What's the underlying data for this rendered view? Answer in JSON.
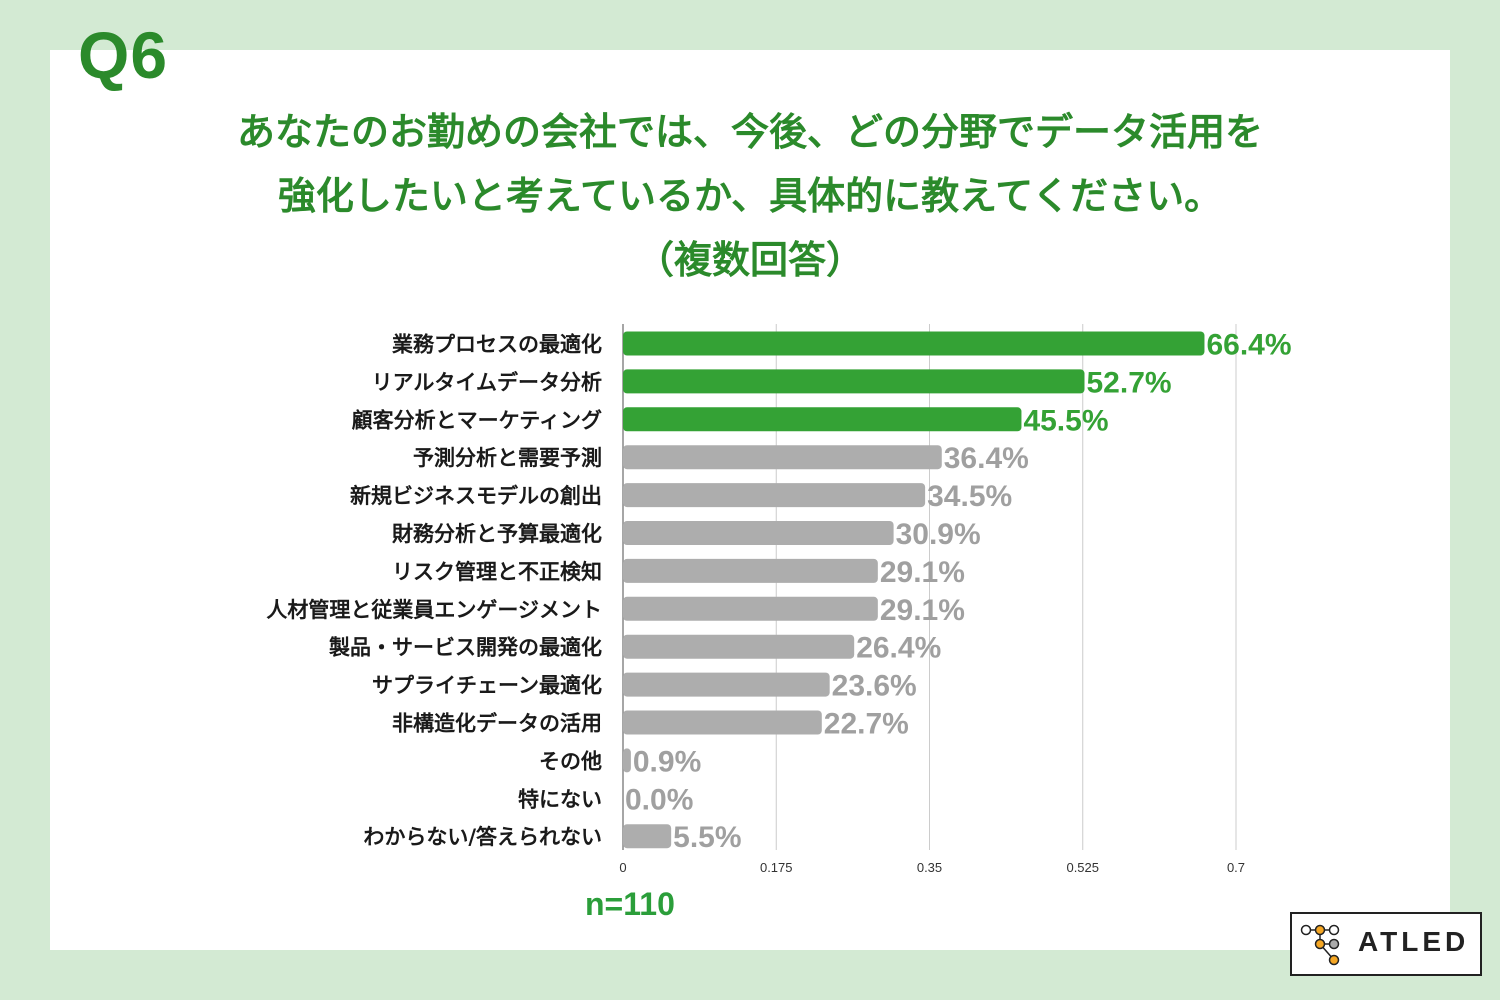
{
  "question": {
    "number": "Q6"
  },
  "title": {
    "line1": "あなたのお勤めの会社では、今後、どの分野でデータ活用を",
    "line2": "強化したいと考えているか、具体的に教えてください。",
    "line3": "（複数回答）"
  },
  "chart_data": {
    "type": "bar",
    "orientation": "horizontal",
    "categories": [
      "業務プロセスの最適化",
      "リアルタイムデータ分析",
      "顧客分析とマーケティング",
      "予測分析と需要予測",
      "新規ビジネスモデルの創出",
      "財務分析と予算最適化",
      "リスク管理と不正検知",
      "人材管理と従業員エンゲージメント",
      "製品・サービス開発の最適化",
      "サプライチェーン最適化",
      "非構造化データの活用",
      "その他",
      "特にない",
      "わからない/答えられない"
    ],
    "values": [
      0.664,
      0.527,
      0.455,
      0.364,
      0.345,
      0.309,
      0.291,
      0.291,
      0.264,
      0.236,
      0.227,
      0.009,
      0.0,
      0.055
    ],
    "value_labels": [
      "66.4%",
      "52.7%",
      "45.5%",
      "36.4%",
      "34.5%",
      "30.9%",
      "29.1%",
      "29.1%",
      "26.4%",
      "23.6%",
      "22.7%",
      "0.9%",
      "0.0%",
      "5.5%"
    ],
    "highlighted_count": 3,
    "xlim": [
      0,
      0.7
    ],
    "xticks": [
      0,
      0.175,
      0.35,
      0.525,
      0.7
    ],
    "xtick_labels": [
      "0",
      "0.175",
      "0.35",
      "0.525",
      "0.7"
    ],
    "grid": true,
    "colors": {
      "highlight": "#34a235",
      "highlight_text": "#34a235",
      "normal": "#adadad",
      "normal_text": "#a0a0a0",
      "grid": "#cccccc"
    }
  },
  "sample": {
    "label": "n=110"
  },
  "logo": {
    "text": "ATLED",
    "dot_colors": [
      "#f5a623",
      "#aaaaaa"
    ]
  },
  "colors": {
    "background": "#d3ead3",
    "accent": "#2b8a2b"
  }
}
